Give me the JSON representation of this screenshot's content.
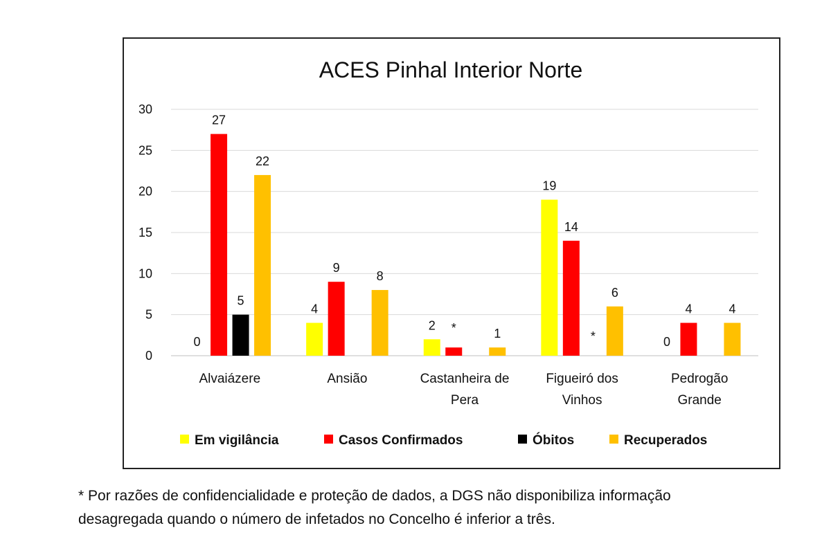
{
  "chart_data": {
    "type": "bar",
    "title": "ACES Pinhal Interior Norte",
    "categories": [
      [
        "Alvaiázere"
      ],
      [
        "Ansião"
      ],
      [
        "Castanheira de",
        "Pera"
      ],
      [
        "Figueiró dos",
        "Vinhos"
      ],
      [
        "Pedrogão",
        "Grande"
      ]
    ],
    "series": [
      {
        "name": "Em vigilância",
        "color": "#FFFF00",
        "values": [
          0,
          4,
          2,
          19,
          0
        ],
        "labels": [
          "0",
          "4",
          "2",
          "19",
          "0"
        ]
      },
      {
        "name": "Casos Confirmados",
        "color": "#FF0000",
        "values": [
          27,
          9,
          1,
          14,
          4
        ],
        "labels": [
          "27",
          "9",
          "*",
          "14",
          "4"
        ]
      },
      {
        "name": "Óbitos",
        "color": "#000000",
        "values": [
          5,
          null,
          null,
          null,
          null
        ],
        "labels": [
          "5",
          "",
          "",
          "*",
          ""
        ]
      },
      {
        "name": "Recuperados",
        "color": "#FFC000",
        "values": [
          22,
          8,
          1,
          6,
          4
        ],
        "labels": [
          "22",
          "8",
          "1",
          "6",
          "4"
        ]
      }
    ],
    "ylim": [
      0,
      30
    ],
    "yticks": [
      0,
      5,
      10,
      15,
      20,
      25,
      30
    ],
    "grid": true,
    "legend": "bottom"
  },
  "footnote": "* Por razões de confidencialidade e proteção de dados, a DGS não disponibiliza informação\ndesagregada quando o número de infetados no Concelho é inferior a três."
}
